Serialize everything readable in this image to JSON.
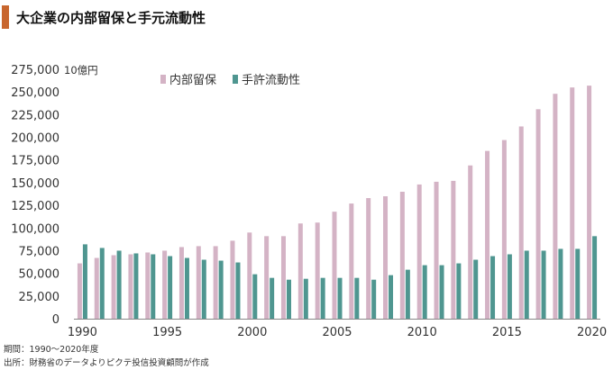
{
  "title": "大企業の内部留保と手元流動性",
  "footer": {
    "period": "期間：1990～2020年度",
    "source": "出所：財務省のデータよりピクテ投信投資顧問が作成"
  },
  "colors": {
    "accent": "#c8662e",
    "retained": "#d4b3c5",
    "liquidity": "#4f9690"
  },
  "chart_data": {
    "type": "bar",
    "unit": "10億円",
    "ylim": [
      0,
      275000
    ],
    "yticks": [
      0,
      25000,
      50000,
      75000,
      100000,
      125000,
      150000,
      175000,
      200000,
      225000,
      250000,
      275000
    ],
    "ytick_labels": [
      "0",
      "25,000",
      "50,000",
      "75,000",
      "100,000",
      "125,000",
      "150,000",
      "175,000",
      "200,000",
      "225,000",
      "250,000",
      "275,000"
    ],
    "xtick_labels": [
      "1990",
      "1995",
      "2000",
      "2005",
      "2010",
      "2015",
      "2020"
    ],
    "legend_position": "top-center",
    "categories": [
      1990,
      1991,
      1992,
      1993,
      1994,
      1995,
      1996,
      1997,
      1998,
      1999,
      2000,
      2001,
      2002,
      2003,
      2004,
      2005,
      2006,
      2007,
      2008,
      2009,
      2010,
      2011,
      2012,
      2013,
      2014,
      2015,
      2016,
      2017,
      2018,
      2019,
      2020
    ],
    "series": [
      {
        "name": "内部留保",
        "values": [
          61000,
          67000,
          70000,
          71000,
          73000,
          75000,
          79000,
          80000,
          80000,
          86000,
          95000,
          91000,
          91000,
          105000,
          106000,
          118000,
          127000,
          133000,
          135000,
          140000,
          148000,
          151000,
          152000,
          169000,
          185000,
          197000,
          212000,
          231000,
          248000,
          255000,
          257000
        ]
      },
      {
        "name": "手許流動性",
        "values": [
          82000,
          78000,
          75000,
          72000,
          71000,
          69000,
          67000,
          65000,
          64000,
          62000,
          49000,
          45000,
          43000,
          44000,
          45000,
          45000,
          45000,
          43000,
          48000,
          54000,
          59000,
          59000,
          61000,
          65000,
          69000,
          71000,
          75000,
          75000,
          77000,
          77000,
          91000
        ]
      }
    ]
  }
}
